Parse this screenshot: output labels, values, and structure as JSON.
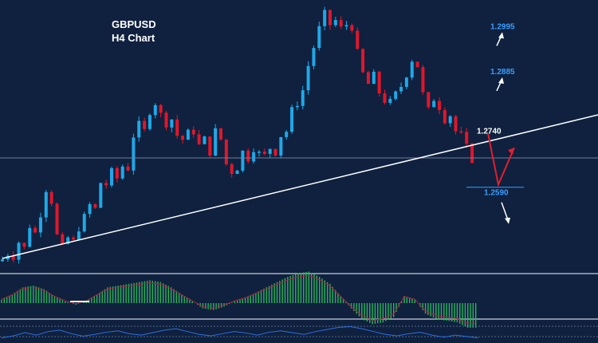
{
  "chart_data": {
    "type": "candlestick",
    "title": "GBPUSD",
    "subtitle": "H4 Chart",
    "grid": false,
    "colors": {
      "background": "#0f213e",
      "bull": "#1fa8e8",
      "bear": "#e0162b",
      "trendline": "#ffffff",
      "level_blue": "#3b9cff",
      "level_white": "#ffffff",
      "projection_red": "#e01f2e",
      "macd_hist": "#2bb35a",
      "rsi_line": "#2c6fe6"
    },
    "price_path": [
      1.2428,
      1.2442,
      1.2436,
      1.247,
      1.2455,
      1.251,
      1.2492,
      1.254,
      1.26,
      1.257,
      1.2485,
      1.2455,
      1.248,
      1.247,
      1.2505,
      1.253,
      1.256,
      1.255,
      1.2615,
      1.261,
      1.264,
      1.2625,
      1.2655,
      1.265,
      1.273,
      1.2755,
      1.274,
      1.279,
      1.281,
      1.278,
      1.276,
      1.277,
      1.273,
      1.272,
      1.2735,
      1.274,
      1.2705,
      1.272,
      1.269,
      1.274,
      1.272,
      1.266,
      1.2642,
      1.2652,
      1.269,
      1.2675,
      1.27,
      1.2685,
      1.268,
      1.27,
      1.269,
      1.273,
      1.274,
      1.279,
      1.281,
      1.284,
      1.29,
      1.2945,
      1.299,
      1.3025,
      1.3,
      1.301,
      1.299,
      1.3,
      1.2995,
      1.293,
      1.288,
      1.2855,
      1.2875,
      1.2835,
      1.2815,
      1.281,
      1.283,
      1.285,
      1.288,
      1.2915,
      1.29,
      1.283,
      1.279,
      1.282,
      1.28,
      1.277,
      1.278,
      1.274,
      1.273,
      1.27,
      1.2672
    ],
    "levels": [
      {
        "label": "1.2995",
        "value": 1.2995,
        "color": "#3b9cff",
        "arrow": "up"
      },
      {
        "label": "1.2885",
        "value": 1.2885,
        "color": "#3b9cff",
        "arrow": "up"
      },
      {
        "label": "1.2740",
        "value": 1.274,
        "color": "#ffffff",
        "arrow": "none"
      },
      {
        "label": "1.2590",
        "value": 1.259,
        "color": "#3b9cff",
        "arrow": "down"
      }
    ],
    "horizontal_line": 1.2675,
    "trendline": {
      "from": {
        "bar": 0,
        "price": 1.243
      },
      "to": {
        "bar": 130,
        "price": 1.278
      }
    },
    "projection": [
      1.2735,
      1.261,
      1.27
    ],
    "macd_hist": [
      0.2,
      0.5,
      0.9,
      1.0,
      0.8,
      0.4,
      0.1,
      -0.1,
      0.1,
      0.5,
      0.9,
      1.0,
      1.1,
      1.2,
      1.3,
      1.2,
      0.9,
      0.5,
      0.1,
      -0.3,
      -0.4,
      -0.2,
      0.1,
      0.3,
      0.6,
      0.9,
      1.2,
      1.5,
      1.7,
      1.8,
      1.5,
      1.1,
      0.4,
      -0.3,
      -0.9,
      -1.2,
      -1.1,
      -0.8,
      0.4,
      0.2,
      -0.6,
      -0.9,
      -1.0,
      -1.1,
      -1.4
    ],
    "rsi_path": [
      40,
      46,
      55,
      48,
      58,
      62,
      52,
      45,
      50,
      56,
      60,
      52,
      48,
      55,
      62,
      66,
      58,
      50,
      46,
      52,
      58,
      54,
      48,
      56,
      60,
      55,
      50,
      58,
      64,
      70,
      72,
      66,
      58,
      50,
      46,
      52,
      56,
      48,
      42,
      48,
      44,
      40
    ]
  }
}
